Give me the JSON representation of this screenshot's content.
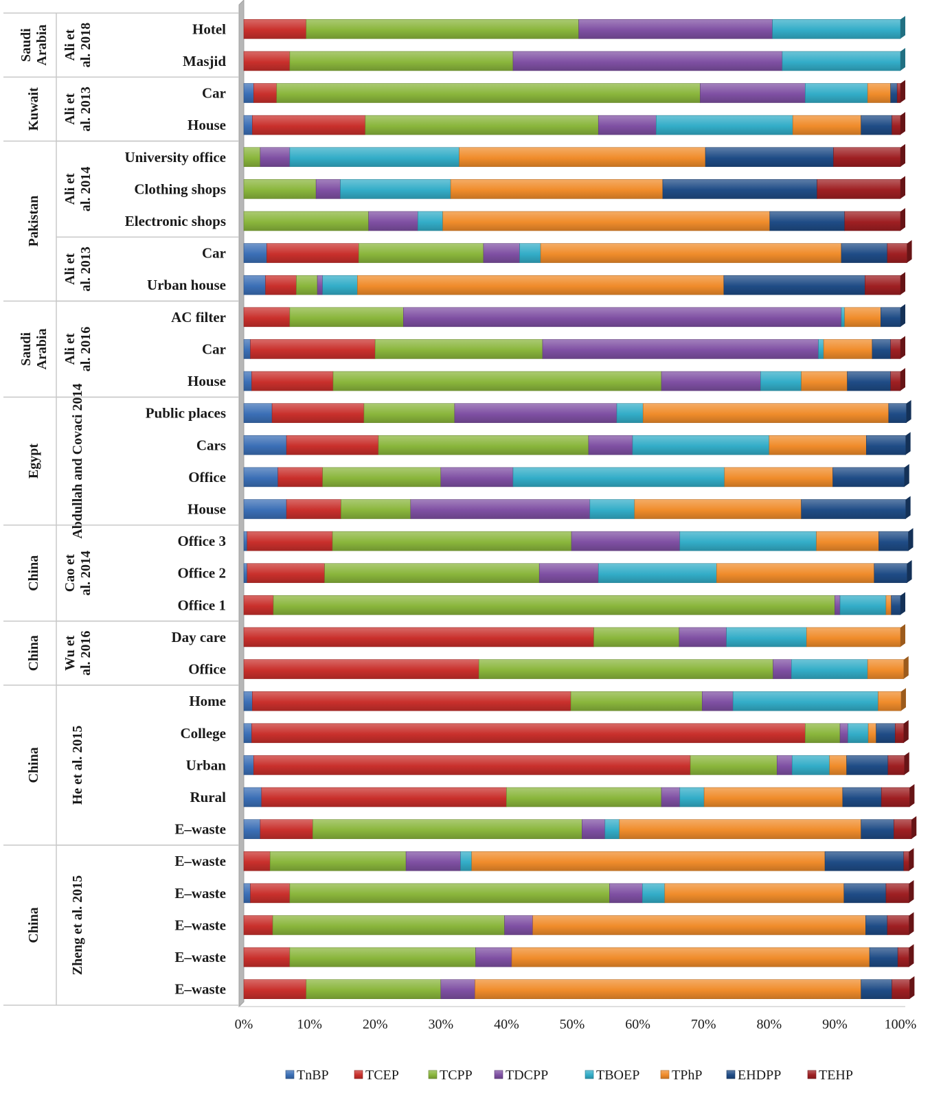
{
  "chart_data": {
    "type": "bar",
    "orientation": "horizontal",
    "stacked": true,
    "percent": true,
    "title": "",
    "xlabel": "",
    "ylabel": "",
    "xlim": [
      0,
      100
    ],
    "x_ticks": [
      "0%",
      "10%",
      "20%",
      "30%",
      "40%",
      "50%",
      "60%",
      "70%",
      "80%",
      "90%",
      "100%"
    ],
    "legend_position": "bottom",
    "series_names": [
      "TnBP",
      "TCEP",
      "TCPP",
      "TDCPP",
      "TBOEP",
      "TPhP",
      "EHDPP",
      "TEHP"
    ],
    "colors": [
      "#3b6fb6",
      "#c9302c",
      "#8ab63c",
      "#7f50a3",
      "#33adc8",
      "#f08c2b",
      "#1f4c86",
      "#9e1f22"
    ],
    "groups": [
      {
        "country": "Saudi Arabia",
        "study": "Ali et al. 2018",
        "categories": [
          {
            "label": "Hotel",
            "values": [
              0,
              9.5,
              41.5,
              29.5,
              19.5,
              0,
              0,
              0
            ]
          },
          {
            "label": "Masjid",
            "values": [
              0,
              7,
              34,
              41,
              18,
              0,
              0,
              0
            ]
          }
        ]
      },
      {
        "country": "Kuwait",
        "study": "Ali et al. 2013",
        "categories": [
          {
            "label": "Car",
            "values": [
              1.5,
              3.5,
              64.5,
              16,
              9.5,
              3.5,
              1,
              0.5
            ]
          },
          {
            "label": "House",
            "values": [
              1.3,
              17.2,
              35.5,
              8.8,
              20.8,
              10.4,
              4.7,
              1.3
            ]
          }
        ]
      },
      {
        "country": "Pakistan",
        "study": "Ali et al. 2014",
        "categories": [
          {
            "label": "University office",
            "values": [
              0,
              0,
              2.5,
              4.5,
              25.8,
              37.5,
              19.5,
              10.2
            ]
          },
          {
            "label": "Clothing shops",
            "values": [
              0,
              0,
              11,
              3.7,
              16.8,
              32.3,
              23.5,
              12.7
            ]
          },
          {
            "label": "Electronic shops",
            "values": [
              0,
              0,
              19,
              7.5,
              3.8,
              49.8,
              11.4,
              8.5
            ]
          }
        ]
      },
      {
        "country": "Pakistan",
        "study": "Ali et al. 2013",
        "categories": [
          {
            "label": "Car",
            "values": [
              3.5,
              14,
              19,
              5.5,
              3.2,
              45.8,
              7,
              3
            ]
          },
          {
            "label": "Urban house",
            "values": [
              3.3,
              4.7,
              3.2,
              0.8,
              5.3,
              55.8,
              21.5,
              5.4
            ]
          }
        ]
      },
      {
        "country": "Saudi Arabia",
        "study": "Ali et al. 2016",
        "categories": [
          {
            "label": "AC filter",
            "values": [
              0,
              7,
              17.3,
              66.7,
              0.5,
              5.5,
              3,
              0
            ]
          },
          {
            "label": "Car",
            "values": [
              1,
              19,
              25.5,
              42,
              0.8,
              7.4,
              2.8,
              1.5
            ]
          },
          {
            "label": "House",
            "values": [
              1.2,
              12.4,
              50,
              15.1,
              6.2,
              7,
              6.6,
              1.5
            ]
          }
        ]
      },
      {
        "country": "Egypt",
        "study": "Abdullah and Covaci 2014",
        "categories": [
          {
            "label": "Public places",
            "values": [
              4.3,
              14,
              13.8,
              24.7,
              4,
              37.4,
              2.7,
              0
            ]
          },
          {
            "label": "Cars",
            "values": [
              6.5,
              14,
              32,
              6.7,
              20.8,
              14.8,
              6,
              0
            ]
          },
          {
            "label": "Office",
            "values": [
              5.2,
              6.8,
              18,
              11,
              32.2,
              16.5,
              10.9,
              0
            ]
          },
          {
            "label": "House",
            "values": [
              6.5,
              8.3,
              10.6,
              27.3,
              6.8,
              25.4,
              15.9,
              0
            ]
          }
        ]
      },
      {
        "country": "China",
        "study": "Cao et al. 2014",
        "categories": [
          {
            "label": "Office 3",
            "values": [
              0.5,
              13,
              36.4,
              16.5,
              20.8,
              9.5,
              4.5,
              0
            ]
          },
          {
            "label": "Office 2",
            "values": [
              0.5,
              11.8,
              32.7,
              9,
              18,
              24,
              5,
              0
            ]
          },
          {
            "label": "Office 1",
            "values": [
              0,
              4.5,
              85.5,
              0.8,
              7,
              0.8,
              1.4,
              0
            ]
          }
        ]
      },
      {
        "country": "China",
        "study": "Wu et al. 2016",
        "categories": [
          {
            "label": "Day care",
            "values": [
              0,
              53.3,
              13,
              7.2,
              12.2,
              14.3,
              0,
              0
            ]
          },
          {
            "label": "Office",
            "values": [
              0,
              35.8,
              44.8,
              2.8,
              11.6,
              5.5,
              0,
              0
            ]
          }
        ]
      },
      {
        "country": "China",
        "study": "He et al. 2015",
        "categories": [
          {
            "label": "Home",
            "values": [
              1.3,
              48.5,
              20,
              4.7,
              22.1,
              3.5,
              0,
              0
            ]
          },
          {
            "label": "College",
            "values": [
              1.2,
              84.3,
              5.3,
              1.2,
              3.1,
              1.2,
              2.9,
              1.3
            ]
          },
          {
            "label": "Urban",
            "values": [
              1.5,
              66.5,
              13.2,
              2.3,
              5.7,
              2.6,
              6.3,
              2.5
            ]
          },
          {
            "label": "Rural",
            "values": [
              2.7,
              37.3,
              23.6,
              2.8,
              3.7,
              21.1,
              5.9,
              4.3
            ]
          },
          {
            "label": "E–waste",
            "values": [
              2.5,
              8,
              41,
              3.5,
              2.2,
              36.8,
              5,
              2.7
            ]
          }
        ]
      },
      {
        "country": "China",
        "study": "Zheng et al. 2015",
        "categories": [
          {
            "label": "E–waste",
            "values": [
              0,
              4,
              20.7,
              8.3,
              1.7,
              53.8,
              12,
              0.8
            ]
          },
          {
            "label": "E–waste",
            "values": [
              1,
              6,
              48.7,
              5,
              3.4,
              27.3,
              6.4,
              3.5
            ]
          },
          {
            "label": "E–waste",
            "values": [
              0,
              4.4,
              35.3,
              4.3,
              0,
              50.7,
              3.3,
              3.3
            ]
          },
          {
            "label": "E–waste",
            "values": [
              0,
              7,
              28.3,
              5.5,
              0,
              54.5,
              4.3,
              1.7
            ]
          },
          {
            "label": "E–waste",
            "values": [
              0,
              9.5,
              20.5,
              5.2,
              0,
              58.8,
              4.7,
              2.7
            ]
          }
        ]
      }
    ]
  }
}
